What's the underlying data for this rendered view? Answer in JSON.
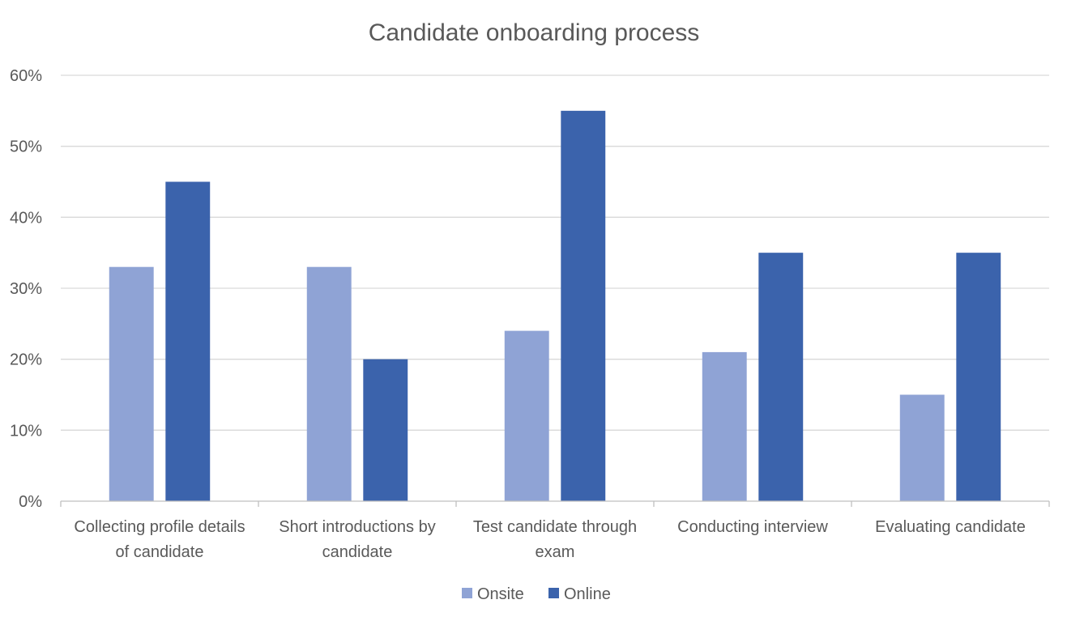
{
  "chart_data": {
    "type": "bar",
    "title": "Candidate onboarding process",
    "xlabel": "",
    "ylabel": "",
    "categories": [
      [
        "Collecting profile details",
        "of candidate"
      ],
      [
        "Short introductions by",
        "candidate"
      ],
      [
        "Test candidate through",
        "exam"
      ],
      [
        "Conducting interview"
      ],
      [
        "Evaluating candidate"
      ]
    ],
    "series": [
      {
        "name": "Onsite",
        "color": "#8FA3D5",
        "values": [
          0.33,
          0.33,
          0.24,
          0.21,
          0.15
        ]
      },
      {
        "name": "Online",
        "color": "#3B63AC",
        "values": [
          0.45,
          0.2,
          0.55,
          0.35,
          0.35
        ]
      }
    ],
    "ylim": [
      0,
      0.6
    ],
    "yticks": [
      "0%",
      "10%",
      "20%",
      "30%",
      "40%",
      "50%",
      "60%"
    ],
    "grid": true,
    "legend_position": "bottom-center"
  }
}
